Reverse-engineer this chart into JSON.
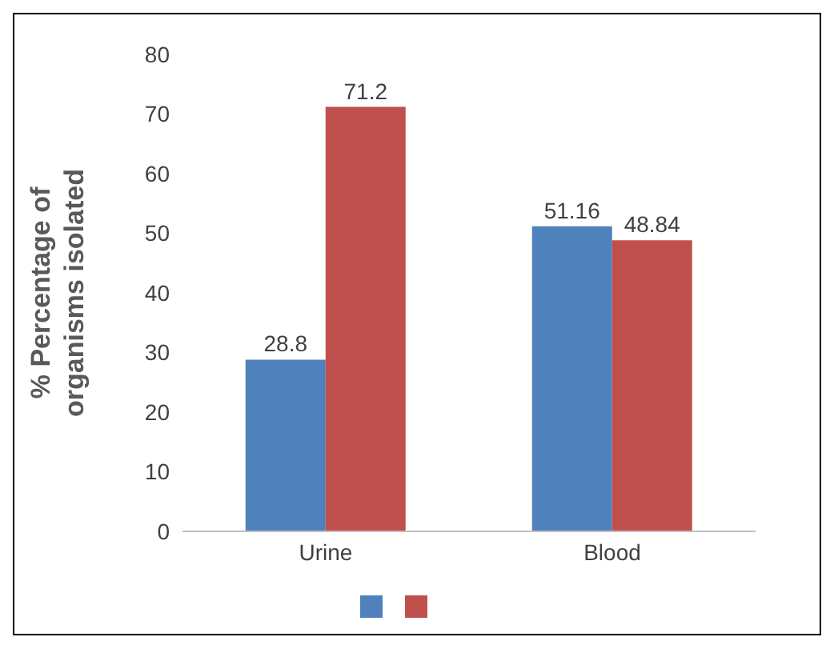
{
  "chart_data": {
    "type": "bar",
    "ylabel": "% Percentage of organisms isolated",
    "categories": [
      "Urine",
      "Blood"
    ],
    "series": [
      {
        "color": "#4f81bd",
        "values": [
          28.8,
          51.16
        ]
      },
      {
        "color": "#c0504d",
        "values": [
          71.2,
          48.84
        ]
      }
    ],
    "ylim": [
      0,
      80
    ],
    "yticks": [
      0,
      10,
      20,
      30,
      40,
      50,
      60,
      70,
      80
    ],
    "data_labels": true
  }
}
